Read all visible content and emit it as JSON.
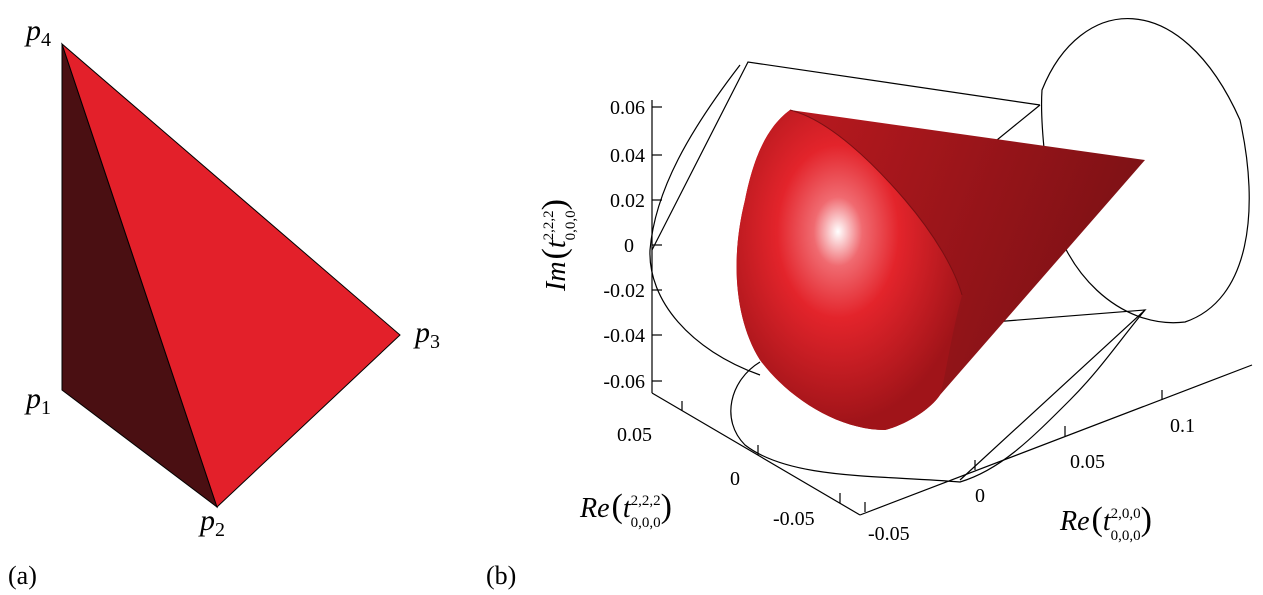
{
  "panel_a": {
    "caption": "(a)",
    "vertices": {
      "p1": {
        "base": "p",
        "sub": "1"
      },
      "p2": {
        "base": "p",
        "sub": "2"
      },
      "p3": {
        "base": "p",
        "sub": "3"
      },
      "p4": {
        "base": "p",
        "sub": "4"
      }
    },
    "colors": {
      "front_face": "#e3202a",
      "side_face": "#4a0f12"
    }
  },
  "panel_b": {
    "caption": "(b)",
    "z_axis": {
      "label_func": "Im",
      "label_sup": "2,2,2",
      "label_sub": "0,0,0",
      "ticks": [
        "0.06",
        "0.04",
        "0.02",
        "0",
        "-0.02",
        "-0.04",
        "-0.06"
      ]
    },
    "x_axis": {
      "label_func": "Re",
      "label_sup": "2,2,2",
      "label_sub": "0,0,0",
      "ticks": [
        "0.05",
        "0",
        "-0.05"
      ]
    },
    "y_axis": {
      "label_func": "Re",
      "label_sup": "2,0,0",
      "label_sub": "0,0,0",
      "ticks": [
        "-0.05",
        "0",
        "0.05",
        "0.1"
      ]
    },
    "colors": {
      "cone_light": "#e8282e",
      "cone_dark": "#8a1418",
      "highlight": "#ffffff"
    }
  }
}
